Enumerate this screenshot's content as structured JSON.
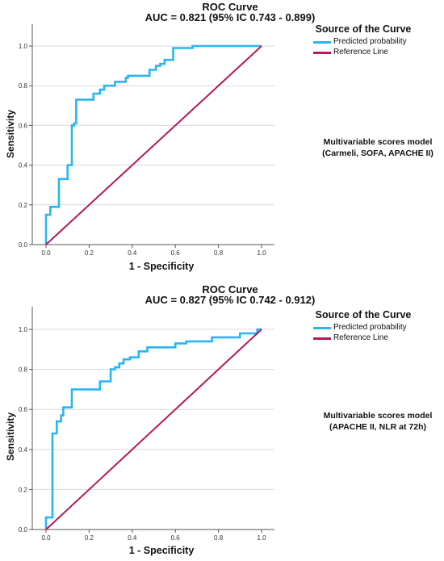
{
  "charts": [
    {
      "title": "ROC Curve",
      "subtitle": "AUC = 0.821 (95% IC 0.743 - 0.899)",
      "xlabel": "1 - Specificity",
      "ylabel": "Sensitivity",
      "legend_title": "Source of the Curve",
      "legend_items": [
        "Predicted probability",
        "Reference Line"
      ],
      "model_label_lines": [
        "Multivariable scores model",
        "(Carmeli, SOFA, APACHE II)"
      ]
    },
    {
      "title": "ROC Curve",
      "subtitle": "AUC = 0.827 (95% IC 0.742 - 0.912)",
      "xlabel": "1 - Specificity",
      "ylabel": "Sensitivity",
      "legend_title": "Source of the Curve",
      "legend_items": [
        "Predicted probability",
        "Reference Line"
      ],
      "model_label_lines": [
        "Multivariable scores model",
        "(APACHE II, NLR at 72h)"
      ]
    }
  ],
  "colors": {
    "curve": "#29b6f0",
    "reference": "#b5195a",
    "grid": "#d9d9d9",
    "axis": "#555555"
  },
  "chart_data": [
    {
      "type": "line",
      "title": "ROC Curve",
      "subtitle": "AUC = 0.821 (95% IC 0.743 - 0.899)",
      "xlabel": "1 - Specificity",
      "ylabel": "Sensitivity",
      "xlim": [
        0,
        1
      ],
      "ylim": [
        0,
        1
      ],
      "ticks": [
        "0.0",
        "0.2",
        "0.4",
        "0.6",
        "0.8",
        "1.0"
      ],
      "grid": "horizontal",
      "legend_position": "right",
      "series": [
        {
          "name": "Predicted probability",
          "color": "#29b6f0",
          "x": [
            0.0,
            0.0,
            0.02,
            0.02,
            0.06,
            0.06,
            0.1,
            0.1,
            0.12,
            0.12,
            0.13,
            0.13,
            0.14,
            0.14,
            0.22,
            0.22,
            0.25,
            0.25,
            0.27,
            0.27,
            0.32,
            0.32,
            0.37,
            0.37,
            0.38,
            0.38,
            0.48,
            0.48,
            0.51,
            0.51,
            0.53,
            0.53,
            0.55,
            0.55,
            0.59,
            0.59,
            0.65,
            0.65,
            0.68,
            0.68,
            1.0
          ],
          "y": [
            0.0,
            0.15,
            0.15,
            0.19,
            0.19,
            0.33,
            0.33,
            0.4,
            0.4,
            0.6,
            0.6,
            0.61,
            0.61,
            0.73,
            0.73,
            0.76,
            0.76,
            0.78,
            0.78,
            0.8,
            0.8,
            0.82,
            0.82,
            0.84,
            0.84,
            0.85,
            0.85,
            0.88,
            0.88,
            0.9,
            0.9,
            0.91,
            0.91,
            0.93,
            0.93,
            0.99,
            0.99,
            0.99,
            0.99,
            1.0,
            1.0
          ]
        },
        {
          "name": "Reference Line",
          "color": "#b5195a",
          "x": [
            0,
            1
          ],
          "y": [
            0,
            1
          ]
        }
      ]
    },
    {
      "type": "line",
      "title": "ROC Curve",
      "subtitle": "AUC = 0.827 (95% IC 0.742 - 0.912)",
      "xlabel": "1 - Specificity",
      "ylabel": "Sensitivity",
      "xlim": [
        0,
        1
      ],
      "ylim": [
        0,
        1
      ],
      "ticks": [
        "0.0",
        "0.2",
        "0.4",
        "0.6",
        "0.8",
        "1.0"
      ],
      "grid": "horizontal",
      "legend_position": "right",
      "series": [
        {
          "name": "Predicted probability",
          "color": "#29b6f0",
          "x": [
            0.0,
            0.0,
            0.03,
            0.03,
            0.05,
            0.05,
            0.07,
            0.07,
            0.08,
            0.08,
            0.12,
            0.12,
            0.25,
            0.25,
            0.3,
            0.3,
            0.32,
            0.32,
            0.34,
            0.34,
            0.36,
            0.36,
            0.39,
            0.39,
            0.43,
            0.43,
            0.47,
            0.47,
            0.6,
            0.6,
            0.65,
            0.65,
            0.77,
            0.77,
            0.9,
            0.9,
            0.98,
            0.98,
            1.0
          ],
          "y": [
            0.0,
            0.06,
            0.06,
            0.48,
            0.48,
            0.54,
            0.54,
            0.57,
            0.57,
            0.61,
            0.61,
            0.7,
            0.7,
            0.74,
            0.74,
            0.8,
            0.8,
            0.81,
            0.81,
            0.83,
            0.83,
            0.85,
            0.85,
            0.86,
            0.86,
            0.89,
            0.89,
            0.91,
            0.91,
            0.93,
            0.93,
            0.94,
            0.94,
            0.96,
            0.96,
            0.98,
            0.98,
            1.0,
            1.0
          ]
        },
        {
          "name": "Reference Line",
          "color": "#b5195a",
          "x": [
            0,
            1
          ],
          "y": [
            0,
            1
          ]
        }
      ]
    }
  ]
}
